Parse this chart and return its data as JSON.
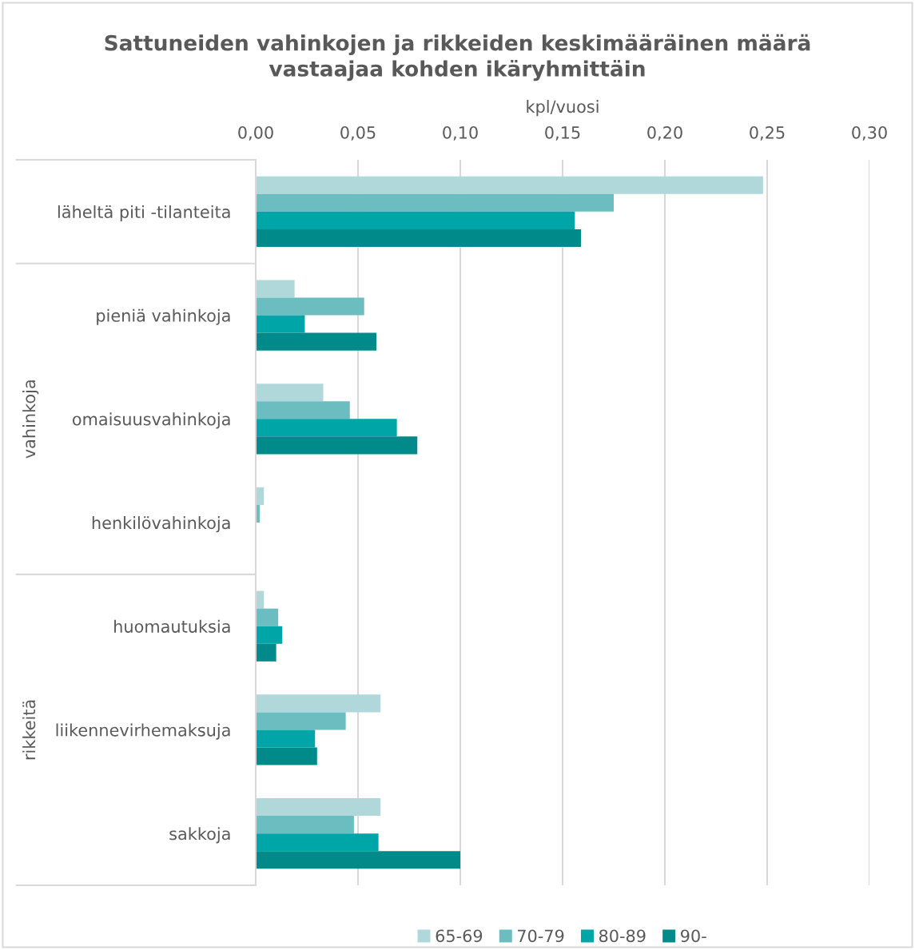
{
  "chart_data": {
    "type": "bar",
    "orientation": "horizontal",
    "title": "Sattuneiden vahinkojen ja rikkeiden keskimääräinen määrä\nvastaajaa kohden ikäryhmittäin",
    "xlabel": "kpl/vuosi",
    "categories": [
      "läheltä piti -tilanteita",
      "pieniä vahinkoja",
      "omaisuusvahinkoja",
      "henkilövahinkoja",
      "huomautuksia",
      "liikennevirhemaksuja",
      "sakkoja"
    ],
    "series": [
      {
        "name": "65-69",
        "color": "#b0d8da",
        "values": [
          0.248,
          0.019,
          0.033,
          0.004,
          0.004,
          0.061,
          0.061
        ]
      },
      {
        "name": "70-79",
        "color": "#6bbdc0",
        "values": [
          0.175,
          0.053,
          0.046,
          0.002,
          0.011,
          0.044,
          0.048
        ]
      },
      {
        "name": "80-89",
        "color": "#00a5a8",
        "values": [
          0.156,
          0.024,
          0.069,
          null,
          0.013,
          0.029,
          0.06
        ]
      },
      {
        "name": "90-",
        "color": "#008a8a",
        "values": [
          0.159,
          0.059,
          0.079,
          null,
          0.01,
          0.03,
          0.1
        ]
      }
    ],
    "xlim": [
      0,
      0.3
    ],
    "xticks": [
      {
        "value": 0,
        "label": "0,00"
      },
      {
        "value": 0.05,
        "label": "0,05"
      },
      {
        "value": 0.1,
        "label": "0,10"
      },
      {
        "value": 0.15,
        "label": "0,15"
      },
      {
        "value": 0.2,
        "label": "0,20"
      },
      {
        "value": 0.25,
        "label": "0,25"
      },
      {
        "value": 0.3,
        "label": "0,30"
      }
    ],
    "annotations": [
      "vahinkoja",
      "rikkeitä"
    ],
    "grid": "x",
    "legend": "bottom"
  }
}
